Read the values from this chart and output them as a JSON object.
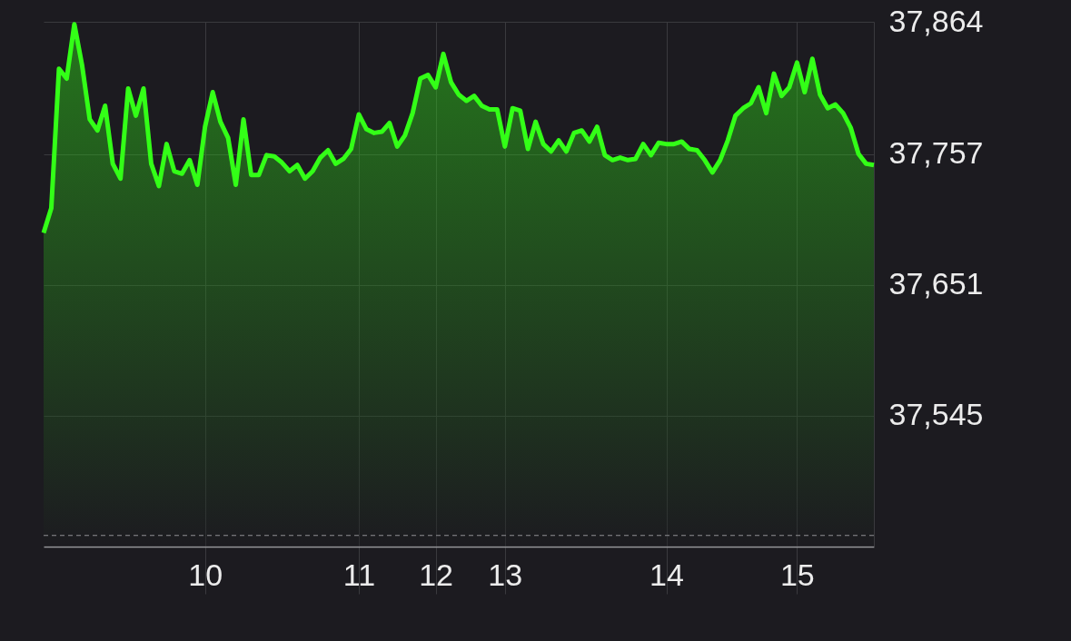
{
  "chart_data": {
    "type": "area",
    "categories": [
      null,
      null,
      null,
      null,
      null,
      null,
      null,
      null,
      null,
      null,
      null,
      null,
      null,
      null,
      null,
      null,
      null,
      null,
      null,
      null,
      null,
      "10",
      null,
      null,
      null,
      null,
      null,
      null,
      null,
      null,
      null,
      null,
      null,
      null,
      null,
      null,
      null,
      null,
      null,
      null,
      null,
      "11",
      null,
      null,
      null,
      null,
      null,
      null,
      null,
      null,
      null,
      "12",
      null,
      null,
      null,
      null,
      null,
      null,
      null,
      null,
      "13",
      null,
      null,
      null,
      null,
      null,
      null,
      null,
      null,
      null,
      null,
      null,
      null,
      null,
      null,
      null,
      null,
      null,
      null,
      null,
      null,
      "14",
      null,
      null,
      null,
      null,
      null,
      null,
      null,
      null,
      null,
      null,
      null,
      null,
      null,
      null,
      null,
      null,
      "15",
      null,
      null,
      null,
      null,
      null,
      null,
      null,
      null,
      null,
      null
    ],
    "series": [
      {
        "color": "#33ff17",
        "values": [
          37693,
          37713,
          37826,
          37818,
          37862,
          37829,
          37785,
          37776,
          37796,
          37749,
          37737,
          37810,
          37788,
          37810,
          37749,
          37731,
          37765,
          37743,
          37741,
          37752,
          37732,
          37779,
          37807,
          37783,
          37770,
          37732,
          37785,
          37740,
          37740,
          37756,
          37755,
          37750,
          37743,
          37748,
          37737,
          37743,
          37754,
          37760,
          37749,
          37753,
          37761,
          37789,
          37777,
          37774,
          37775,
          37782,
          37763,
          37772,
          37790,
          37818,
          37821,
          37811,
          37838,
          37815,
          37805,
          37800,
          37804,
          37796,
          37793,
          37793,
          37763,
          37794,
          37792,
          37761,
          37783,
          37765,
          37759,
          37768,
          37759,
          37774,
          37776,
          37767,
          37779,
          37756,
          37752,
          37754,
          37752,
          37753,
          37765,
          37756,
          37766,
          37765,
          37765,
          37767,
          37761,
          37760,
          37752,
          37742,
          37752,
          37768,
          37788,
          37794,
          37798,
          37811,
          37790,
          37822,
          37804,
          37811,
          37831,
          37807,
          37834,
          37805,
          37794,
          37797,
          37790,
          37778,
          37757,
          37749,
          37748
        ]
      }
    ],
    "ylim": [
      37439,
      37864
    ],
    "yticks": [
      {
        "value": 37864,
        "label": "37,864"
      },
      {
        "value": 37757,
        "label": "37,757"
      },
      {
        "value": 37651,
        "label": "37,651"
      },
      {
        "value": 37545,
        "label": "37,545"
      }
    ],
    "grid": true,
    "ref_lines": [
      {
        "axis": "y",
        "value": 37448,
        "line_style": "dashed",
        "color": "#8e8e93"
      }
    ]
  }
}
